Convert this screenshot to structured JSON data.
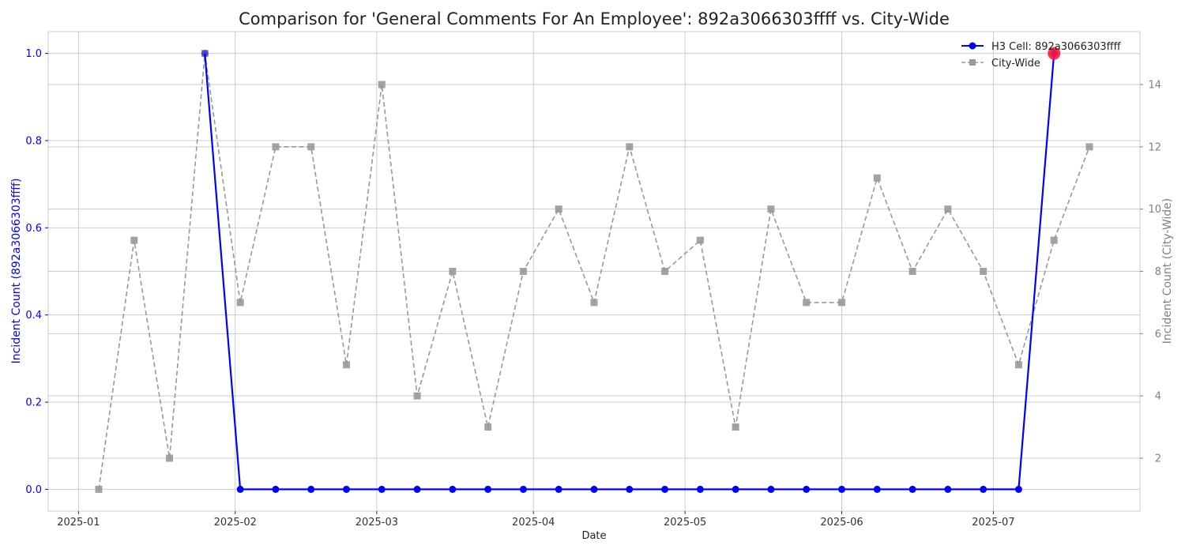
{
  "chart_data": {
    "type": "line",
    "title": "Comparison for 'General Comments For An Employee': 892a3066303ffff vs. City-Wide",
    "xlabel": "Date",
    "ylabel_left": "Incident Count (892a3066303ffff)",
    "ylabel_right": "Incident Count (City-Wide)",
    "x_ticks": [
      "2025-01",
      "2025-02",
      "2025-03",
      "2025-04",
      "2025-05",
      "2025-06",
      "2025-07"
    ],
    "x_tick_dates": [
      "2025-01-01",
      "2025-02-01",
      "2025-03-01",
      "2025-04-01",
      "2025-05-01",
      "2025-06-01",
      "2025-07-01"
    ],
    "x_range": [
      "2024-12-26",
      "2025-07-30"
    ],
    "y_left_ticks": [
      "0.0",
      "0.2",
      "0.4",
      "0.6",
      "0.8",
      "1.0"
    ],
    "y_left_range": [
      -0.05,
      1.05
    ],
    "y_right_ticks": [
      "2",
      "4",
      "6",
      "8",
      "10",
      "12",
      "14"
    ],
    "y_right_range": [
      0.3,
      15.7
    ],
    "grid": true,
    "legend_position": "top-right",
    "colors": {
      "h3": "#0000ff",
      "city": "#999999",
      "highlight": "#ff1a3d"
    },
    "series": [
      {
        "name": "H3 Cell: 892a3066303ffff",
        "axis": "left",
        "x": [
          "2025-01-26",
          "2025-02-02",
          "2025-02-09",
          "2025-02-16",
          "2025-02-23",
          "2025-03-02",
          "2025-03-09",
          "2025-03-16",
          "2025-03-23",
          "2025-03-30",
          "2025-04-06",
          "2025-04-13",
          "2025-04-20",
          "2025-04-27",
          "2025-05-04",
          "2025-05-11",
          "2025-05-18",
          "2025-05-25",
          "2025-06-01",
          "2025-06-08",
          "2025-06-15",
          "2025-06-22",
          "2025-06-29",
          "2025-07-06",
          "2025-07-13"
        ],
        "values": [
          1,
          0,
          0,
          0,
          0,
          0,
          0,
          0,
          0,
          0,
          0,
          0,
          0,
          0,
          0,
          0,
          0,
          0,
          0,
          0,
          0,
          0,
          0,
          0,
          1
        ],
        "highlight_index": 24
      },
      {
        "name": "City-Wide",
        "axis": "right",
        "x": [
          "2025-01-05",
          "2025-01-12",
          "2025-01-19",
          "2025-01-26",
          "2025-02-02",
          "2025-02-09",
          "2025-02-16",
          "2025-02-23",
          "2025-03-02",
          "2025-03-09",
          "2025-03-16",
          "2025-03-23",
          "2025-03-30",
          "2025-04-06",
          "2025-04-13",
          "2025-04-20",
          "2025-04-27",
          "2025-05-04",
          "2025-05-11",
          "2025-05-18",
          "2025-05-25",
          "2025-06-01",
          "2025-06-08",
          "2025-06-15",
          "2025-06-22",
          "2025-06-29",
          "2025-07-06",
          "2025-07-13",
          "2025-07-20"
        ],
        "values": [
          1,
          9,
          2,
          15,
          7,
          12,
          12,
          5,
          14,
          4,
          8,
          3,
          8,
          10,
          7,
          12,
          8,
          9,
          3,
          10,
          7,
          7,
          11,
          8,
          10,
          8,
          5,
          9,
          12
        ]
      }
    ]
  }
}
